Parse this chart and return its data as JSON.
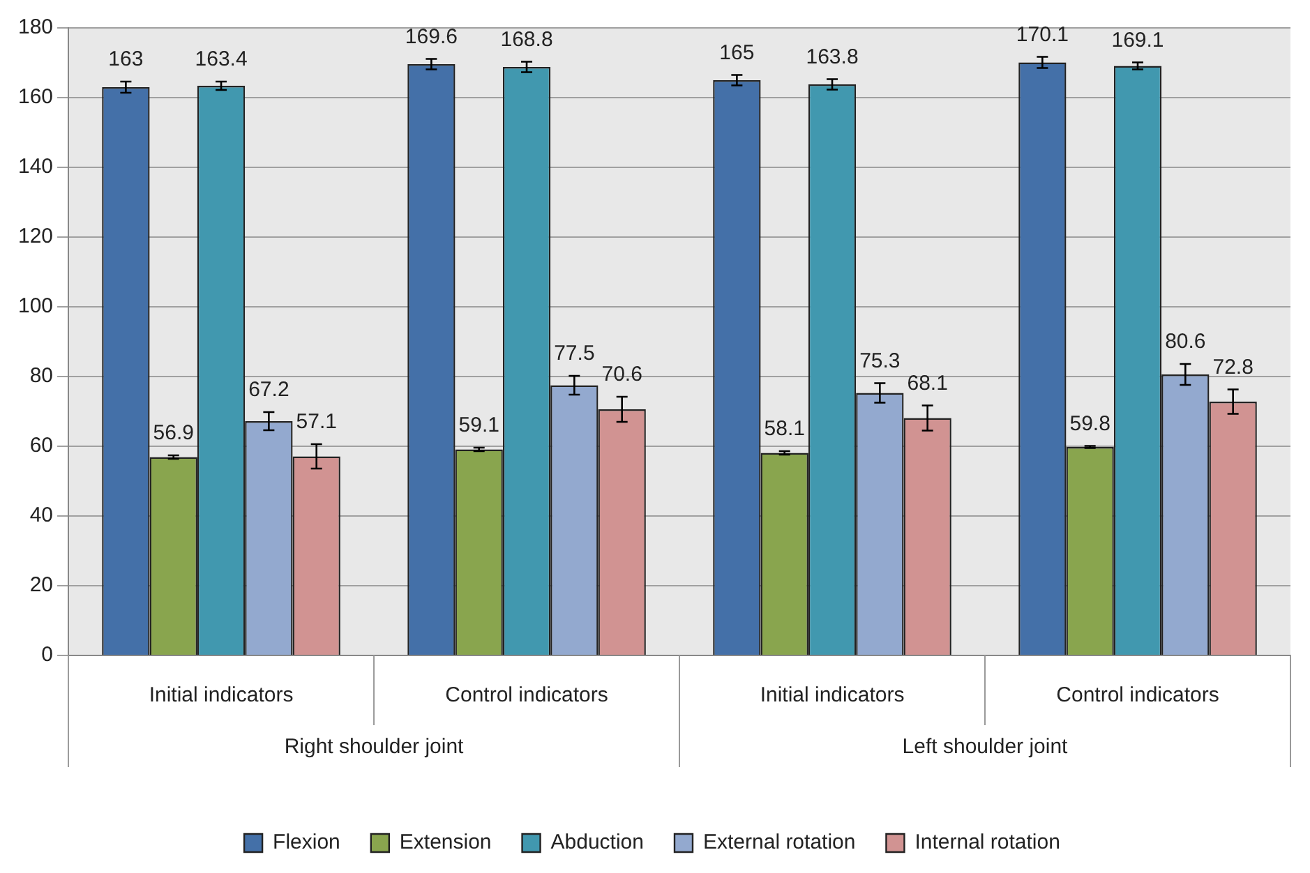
{
  "chart_data": {
    "type": "bar",
    "categories": [
      "Initial indicators",
      "Control indicators",
      "Initial indicators",
      "Control indicators"
    ],
    "series": [
      {
        "name": "Flexion",
        "color": "#4470a8",
        "values": [
          163,
          169.6,
          165,
          170.1
        ],
        "errors": [
          1.6,
          1.5,
          1.5,
          1.6
        ]
      },
      {
        "name": "Extension",
        "color": "#89a54e",
        "values": [
          56.9,
          59.1,
          58.1,
          59.8
        ],
        "errors": [
          0.5,
          0.5,
          0.5,
          0.3
        ]
      },
      {
        "name": "Abduction",
        "color": "#4198af",
        "values": [
          163.4,
          168.8,
          163.8,
          169.1
        ],
        "errors": [
          1.2,
          1.5,
          1.5,
          1.0
        ]
      },
      {
        "name": "External rotation",
        "color": "#93a9cf",
        "values": [
          67.2,
          77.5,
          75.3,
          80.6
        ],
        "errors": [
          2.6,
          2.7,
          2.8,
          3.0
        ]
      },
      {
        "name": "Internal rotation",
        "color": "#d19392",
        "values": [
          57.1,
          70.6,
          68.1,
          72.8
        ],
        "errors": [
          3.5,
          3.6,
          3.6,
          3.5
        ]
      }
    ],
    "annotations": [
      "Right shoulder joint",
      "Left shoulder joint"
    ],
    "ylim": [
      0,
      180
    ],
    "yticks": [
      0,
      20,
      40,
      60,
      80,
      100,
      120,
      140,
      160,
      180
    ],
    "grid": "y",
    "legend": "bottom",
    "data_labels": true
  }
}
